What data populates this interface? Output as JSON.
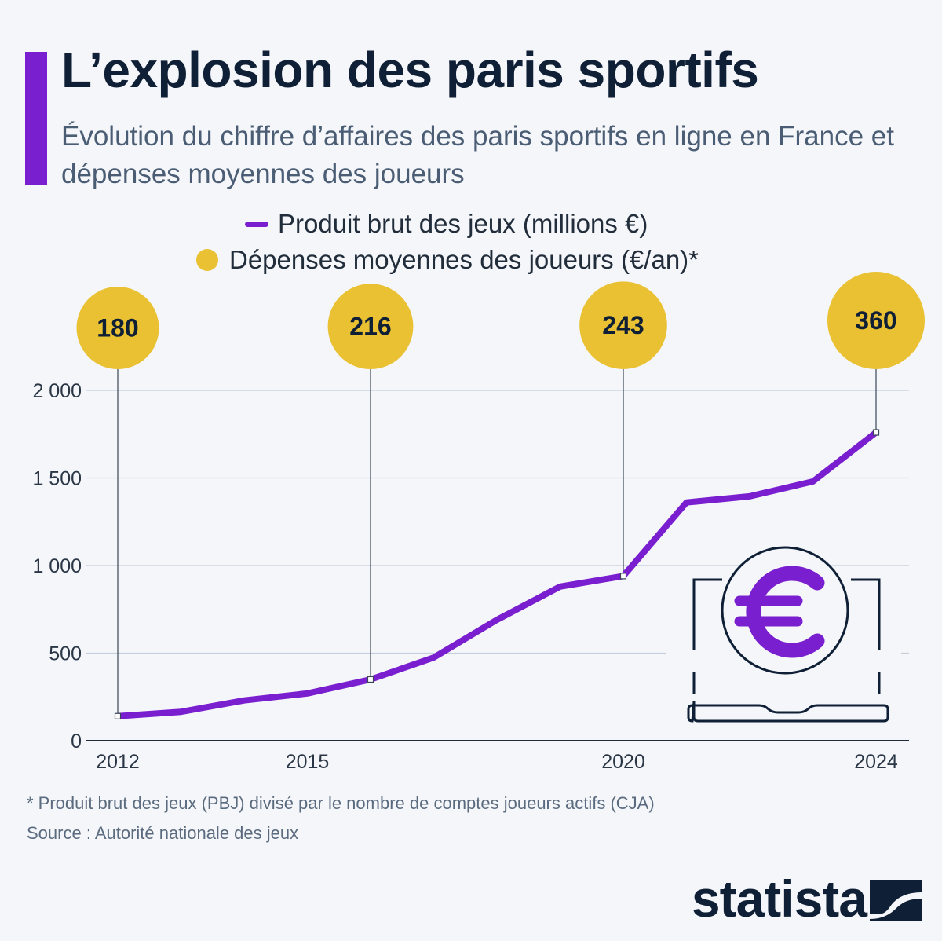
{
  "header": {
    "title": "L’explosion des paris sportifs",
    "subtitle": "Évolution du chiffre d’affaires des paris sportifs en ligne en France et dépenses moyennes des joueurs"
  },
  "legend": {
    "line_label": "Produit brut des jeux (millions €)",
    "dot_label": "Dépenses moyennes des joueurs (€/an)*"
  },
  "colors": {
    "accent": "#7a1fd0",
    "bubble": "#e9c132",
    "text_dark": "#0f1f36",
    "grid": "#c5cedb"
  },
  "chart_data": {
    "type": "line",
    "title": "L’explosion des paris sportifs",
    "xlabel": "",
    "ylabel": "",
    "ylim": [
      0,
      2000
    ],
    "xlim": [
      2012,
      2024
    ],
    "yticks": [
      0,
      500,
      1000,
      1500,
      2000
    ],
    "ytick_labels": [
      "0",
      "500",
      "1 000",
      "1 500",
      "2 000"
    ],
    "xticks": [
      2012,
      2015,
      2020,
      2024
    ],
    "xtick_labels": [
      "2012",
      "2015",
      "2020",
      "2024"
    ],
    "grid": true,
    "series": [
      {
        "name": "Produit brut des jeux (millions €)",
        "x": [
          2012,
          2013,
          2014,
          2015,
          2016,
          2017,
          2018,
          2019,
          2020,
          2021,
          2022,
          2023,
          2024
        ],
        "values": [
          140,
          165,
          230,
          270,
          350,
          475,
          690,
          880,
          940,
          1360,
          1395,
          1480,
          1760
        ]
      }
    ],
    "annotations": [
      {
        "name": "Dépenses moyennes des joueurs (€/an)*",
        "x": 2012,
        "anchor_value": 140,
        "value": 180,
        "label": "180"
      },
      {
        "name": "Dépenses moyennes des joueurs (€/an)*",
        "x": 2016,
        "anchor_value": 350,
        "value": 216,
        "label": "216"
      },
      {
        "name": "Dépenses moyennes des joueurs (€/an)*",
        "x": 2020,
        "anchor_value": 940,
        "value": 243,
        "label": "243"
      },
      {
        "name": "Dépenses moyennes des joueurs (€/an)*",
        "x": 2024,
        "anchor_value": 1760,
        "value": 360,
        "label": "360"
      }
    ]
  },
  "footer": {
    "footnote": "* Produit brut des jeux (PBJ) divisé par le nombre de comptes joueurs actifs (CJA)",
    "source": "Source : Autorité nationale des jeux",
    "brand": "statista"
  },
  "icons": {
    "illustration": "laptop-euro-icon",
    "brand_mark": "statista-logo-icon"
  }
}
